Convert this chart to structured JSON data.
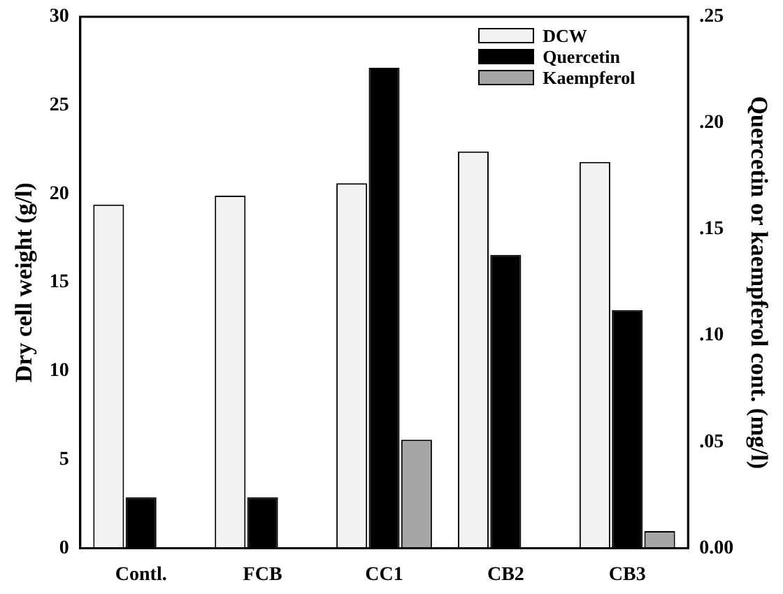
{
  "chart_data": {
    "type": "bar",
    "categories": [
      "Contl.",
      "FCB",
      "CC1",
      "CB2",
      "CB3"
    ],
    "ylabel": "Dry cell weight (g/l)",
    "y2label": "Quercetin or kaempferol cont. (mg/l)",
    "ylim": [
      0,
      30
    ],
    "yticks": [
      0,
      5,
      10,
      15,
      20,
      25,
      30
    ],
    "y2lim": [
      0,
      0.25
    ],
    "y2ticks": [
      {
        "value": 0,
        "label": "0.00"
      },
      {
        "value": 0.05,
        "label": ".05"
      },
      {
        "value": 0.1,
        "label": ".10"
      },
      {
        "value": 0.15,
        "label": ".15"
      },
      {
        "value": 0.2,
        "label": ".20"
      },
      {
        "value": 0.25,
        "label": ".25"
      }
    ],
    "grid": false,
    "legend": "top right",
    "series": [
      {
        "name": "DCW",
        "color": "#f2f2f2",
        "values": [
          19.4,
          19.9,
          20.6,
          22.4,
          21.8
        ]
      },
      {
        "name": "Quercetin",
        "color": "#000000",
        "axis": "y2",
        "values": [
          0.024,
          0.024,
          0.226,
          0.138,
          0.112
        ]
      },
      {
        "name": "Kaempferol",
        "color": "#a6a6a6",
        "axis": "y2",
        "values": [
          0,
          0,
          0.051,
          0,
          0.008
        ]
      }
    ]
  }
}
